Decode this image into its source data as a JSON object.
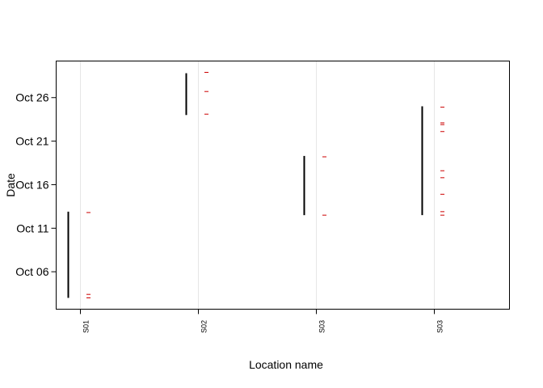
{
  "chart_data": {
    "type": "timeline",
    "xlabel": "Location name",
    "ylabel": "Date",
    "x_categories": [
      "S01",
      "S02",
      "S03",
      "S03"
    ],
    "y_ticks": [
      "Oct 06",
      "Oct 11",
      "Oct 16",
      "Oct 21",
      "Oct 26"
    ],
    "y_tick_values": [
      6,
      11,
      16,
      21,
      26
    ],
    "ylim": [
      1.7,
      30.2
    ],
    "grid": "vertical",
    "colors": {
      "range": "#000000",
      "detection": "#cc0000",
      "grid": "#e6e6e6"
    },
    "ranges": [
      {
        "category": 0,
        "start": 3.0,
        "end": 12.9
      },
      {
        "category": 1,
        "start": 24.0,
        "end": 28.8
      },
      {
        "category": 2,
        "start": 12.5,
        "end": 19.3
      },
      {
        "category": 3,
        "start": 12.5,
        "end": 25.0
      }
    ],
    "detections": [
      {
        "category": 0,
        "dates": [
          3.0,
          3.4,
          12.8
        ]
      },
      {
        "category": 1,
        "dates": [
          24.1,
          26.7,
          28.9
        ]
      },
      {
        "category": 2,
        "dates": [
          12.5,
          19.2
        ]
      },
      {
        "category": 3,
        "dates": [
          12.5,
          12.9,
          14.9,
          16.8,
          17.6,
          22.1,
          22.9,
          23.1,
          24.9
        ]
      }
    ]
  }
}
